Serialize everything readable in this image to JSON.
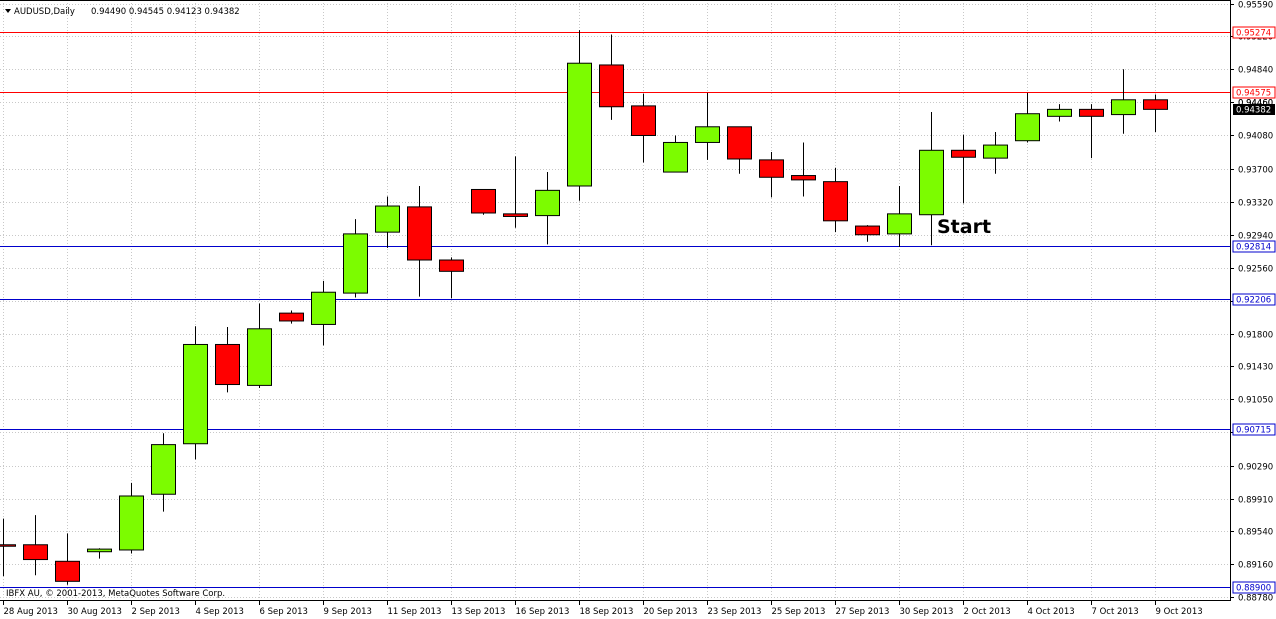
{
  "chart_data": {
    "type": "candlestick",
    "header": {
      "symbol": "AUDUSD,Daily",
      "ohlc": "0.94490 0.94545 0.94123 0.94382"
    },
    "copyright": "IBFX AU, © 2001-2013, MetaQuotes Software Corp.",
    "ylim": [
      0.8878,
      0.9559
    ],
    "y_ticks": [
      "0.95590",
      "0.95220",
      "0.94840",
      "0.94460",
      "0.94080",
      "0.93700",
      "0.93320",
      "0.92940",
      "0.92560",
      "0.92180",
      "0.91800",
      "0.91430",
      "0.91050",
      "0.90670",
      "0.90290",
      "0.89910",
      "0.89540",
      "0.89160",
      "0.88780"
    ],
    "x_ticks": [
      "28 Aug 2013",
      "30 Aug 2013",
      "2 Sep 2013",
      "4 Sep 2013",
      "6 Sep 2013",
      "9 Sep 2013",
      "11 Sep 2013",
      "13 Sep 2013",
      "16 Sep 2013",
      "18 Sep 2013",
      "20 Sep 2013",
      "23 Sep 2013",
      "25 Sep 2013",
      "27 Sep 2013",
      "30 Sep 2013",
      "2 Oct 2013",
      "4 Oct 2013",
      "7 Oct 2013",
      "9 Oct 2013"
    ],
    "candles": [
      {
        "o": 0.8938,
        "h": 0.8968,
        "l": 0.8902,
        "c": 0.8937
      },
      {
        "o": 0.8938,
        "h": 0.8972,
        "l": 0.8903,
        "c": 0.8921
      },
      {
        "o": 0.8919,
        "h": 0.8951,
        "l": 0.8892,
        "c": 0.8896
      },
      {
        "o": 0.893,
        "h": 0.8934,
        "l": 0.8922,
        "c": 0.8933
      },
      {
        "o": 0.8932,
        "h": 0.9009,
        "l": 0.8928,
        "c": 0.8994
      },
      {
        "o": 0.8996,
        "h": 0.9066,
        "l": 0.8976,
        "c": 0.9053
      },
      {
        "o": 0.9054,
        "h": 0.9189,
        "l": 0.9036,
        "c": 0.9168
      },
      {
        "o": 0.9168,
        "h": 0.9188,
        "l": 0.9113,
        "c": 0.9122
      },
      {
        "o": 0.9121,
        "h": 0.9215,
        "l": 0.9118,
        "c": 0.9186
      },
      {
        "o": 0.9204,
        "h": 0.9207,
        "l": 0.9192,
        "c": 0.9195
      },
      {
        "o": 0.9191,
        "h": 0.9241,
        "l": 0.9167,
        "c": 0.9228
      },
      {
        "o": 0.9227,
        "h": 0.9312,
        "l": 0.9222,
        "c": 0.9295
      },
      {
        "o": 0.9297,
        "h": 0.9338,
        "l": 0.9279,
        "c": 0.9327
      },
      {
        "o": 0.9326,
        "h": 0.935,
        "l": 0.9223,
        "c": 0.9265
      },
      {
        "o": 0.9265,
        "h": 0.9268,
        "l": 0.9221,
        "c": 0.9252
      },
      {
        "o": 0.9346,
        "h": 0.9346,
        "l": 0.9317,
        "c": 0.9319
      },
      {
        "o": 0.9318,
        "h": 0.9384,
        "l": 0.9302,
        "c": 0.9315
      },
      {
        "o": 0.9316,
        "h": 0.9366,
        "l": 0.9283,
        "c": 0.9345
      },
      {
        "o": 0.935,
        "h": 0.9529,
        "l": 0.9333,
        "c": 0.9491
      },
      {
        "o": 0.9489,
        "h": 0.9524,
        "l": 0.9426,
        "c": 0.9441
      },
      {
        "o": 0.9442,
        "h": 0.9456,
        "l": 0.9377,
        "c": 0.9408
      },
      {
        "o": 0.9366,
        "h": 0.9408,
        "l": 0.9366,
        "c": 0.94
      },
      {
        "o": 0.94,
        "h": 0.9457,
        "l": 0.938,
        "c": 0.9418
      },
      {
        "o": 0.9418,
        "h": 0.9418,
        "l": 0.9364,
        "c": 0.9381
      },
      {
        "o": 0.938,
        "h": 0.9389,
        "l": 0.9337,
        "c": 0.936
      },
      {
        "o": 0.9362,
        "h": 0.94,
        "l": 0.9338,
        "c": 0.9357
      },
      {
        "o": 0.9355,
        "h": 0.9371,
        "l": 0.9297,
        "c": 0.931
      },
      {
        "o": 0.9304,
        "h": 0.9305,
        "l": 0.9286,
        "c": 0.9294
      },
      {
        "o": 0.9295,
        "h": 0.935,
        "l": 0.928,
        "c": 0.9318
      },
      {
        "o": 0.9317,
        "h": 0.9435,
        "l": 0.9282,
        "c": 0.9391
      },
      {
        "o": 0.9391,
        "h": 0.9409,
        "l": 0.933,
        "c": 0.9383
      },
      {
        "o": 0.9382,
        "h": 0.9412,
        "l": 0.9364,
        "c": 0.9397
      },
      {
        "o": 0.9402,
        "h": 0.9457,
        "l": 0.94,
        "c": 0.9433
      },
      {
        "o": 0.943,
        "h": 0.9444,
        "l": 0.9424,
        "c": 0.9438
      },
      {
        "o": 0.9438,
        "h": 0.9444,
        "l": 0.9382,
        "c": 0.943
      },
      {
        "o": 0.9432,
        "h": 0.9484,
        "l": 0.941,
        "c": 0.9449
      },
      {
        "o": 0.9449,
        "h": 0.9455,
        "l": 0.9412,
        "c": 0.9438
      }
    ],
    "h_lines": [
      {
        "value": 0.95274,
        "label": "0.95274",
        "color": "#ff0000",
        "style": "red"
      },
      {
        "value": 0.94575,
        "label": "0.94575",
        "color": "#ff0000",
        "style": "red"
      },
      {
        "value": 0.92814,
        "label": "0.92814",
        "color": "#0000cc",
        "style": "blue"
      },
      {
        "value": 0.92206,
        "label": "0.92206",
        "color": "#0000cc",
        "style": "blue"
      },
      {
        "value": 0.90715,
        "label": "0.90715",
        "color": "#0000cc",
        "style": "blue"
      },
      {
        "value": 0.889,
        "label": "0.88900",
        "color": "#0000cc",
        "style": "blue"
      }
    ],
    "price_marker": {
      "value": 0.94382,
      "label": "0.94382"
    },
    "partial_label": "0.94460",
    "annotation": {
      "text": "Start",
      "candle": 29
    },
    "colors": {
      "bull": "#7cfc00",
      "bear": "#ff0000",
      "grid": "#c8c8c8",
      "axis": "#000000"
    }
  }
}
